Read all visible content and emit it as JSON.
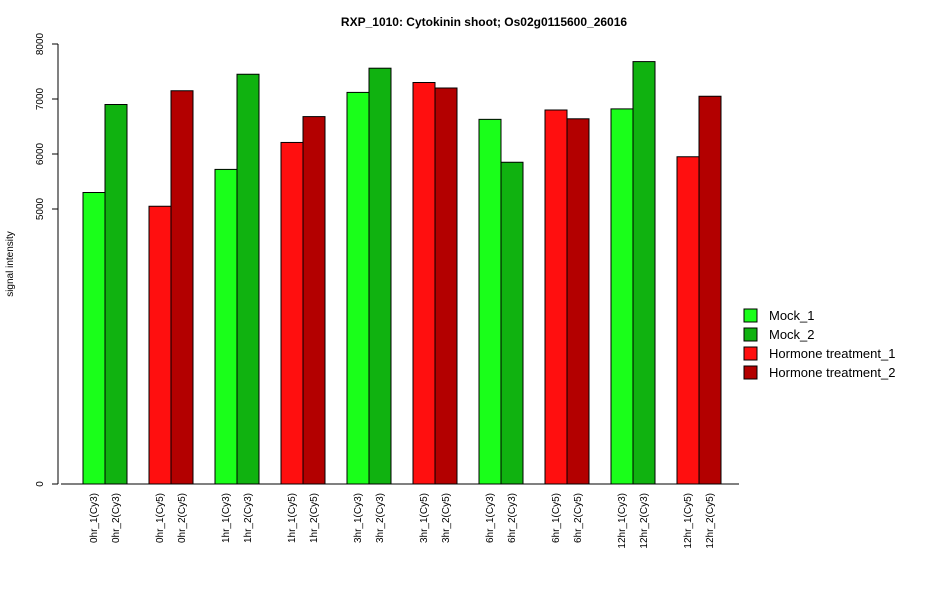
{
  "chart_data": {
    "type": "bar",
    "title": "RXP_1010: Cytokinin shoot; Os02g0115600_26016",
    "ylabel": "signal intensity",
    "xlabel": "",
    "y_axis": {
      "scale": "broken",
      "ticks": [
        0,
        5000,
        6000,
        7000,
        8000
      ]
    },
    "legend_position": "right",
    "grid": false,
    "series": [
      {
        "name": "Mock_1",
        "color": "#1aff1a"
      },
      {
        "name": "Mock_2",
        "color": "#10b210"
      },
      {
        "name": "Hormone treatment_1",
        "color": "#ff0f0f"
      },
      {
        "name": "Hormone treatment_2",
        "color": "#b30000"
      }
    ],
    "bars": [
      {
        "label": "0hr_1(Cy3)",
        "value": 5300,
        "series": "Mock_1"
      },
      {
        "label": "0hr_2(Cy3)",
        "value": 6900,
        "series": "Mock_2"
      },
      {
        "label": "0hr_1(Cy5)",
        "value": 5050,
        "series": "Hormone treatment_1"
      },
      {
        "label": "0hr_2(Cy5)",
        "value": 7150,
        "series": "Hormone treatment_2"
      },
      {
        "label": "1hr_1(Cy3)",
        "value": 5720,
        "series": "Mock_1"
      },
      {
        "label": "1hr_2(Cy3)",
        "value": 7450,
        "series": "Mock_2"
      },
      {
        "label": "1hr_1(Cy5)",
        "value": 6210,
        "series": "Hormone treatment_1"
      },
      {
        "label": "1hr_2(Cy5)",
        "value": 6680,
        "series": "Hormone treatment_2"
      },
      {
        "label": "3hr_1(Cy3)",
        "value": 7120,
        "series": "Mock_1"
      },
      {
        "label": "3hr_2(Cy3)",
        "value": 7560,
        "series": "Mock_2"
      },
      {
        "label": "3hr_1(Cy5)",
        "value": 7300,
        "series": "Hormone treatment_1"
      },
      {
        "label": "3hr_2(Cy5)",
        "value": 7200,
        "series": "Hormone treatment_2"
      },
      {
        "label": "6hr_1(Cy3)",
        "value": 6630,
        "series": "Mock_1"
      },
      {
        "label": "6hr_2(Cy3)",
        "value": 5850,
        "series": "Mock_2"
      },
      {
        "label": "6hr_1(Cy5)",
        "value": 6800,
        "series": "Hormone treatment_1"
      },
      {
        "label": "6hr_2(Cy5)",
        "value": 6640,
        "series": "Hormone treatment_2"
      },
      {
        "label": "12hr_1(Cy3)",
        "value": 6820,
        "series": "Mock_1"
      },
      {
        "label": "12hr_2(Cy3)",
        "value": 7680,
        "series": "Mock_2"
      },
      {
        "label": "12hr_1(Cy5)",
        "value": 5950,
        "series": "Hormone treatment_1"
      },
      {
        "label": "12hr_2(Cy5)",
        "value": 7050,
        "series": "Hormone treatment_2"
      }
    ]
  }
}
